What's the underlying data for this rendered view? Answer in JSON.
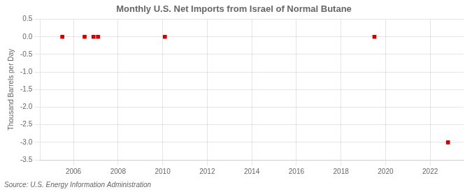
{
  "chart_data": {
    "type": "scatter",
    "title": "Monthly U.S. Net Imports from Israel of Normal Butane",
    "ylabel": "Thousand Barrels per Day",
    "annotations": [
      "Source: U.S. Energy Information Administration"
    ],
    "x": [
      2005.5,
      2006.5,
      2006.9,
      2007.1,
      2010.1,
      2019.5,
      2022.8
    ],
    "values": [
      0.0,
      0.0,
      0.0,
      0.0,
      0.0,
      0.0,
      -3.0
    ],
    "color": "#cc0000",
    "marker": "square",
    "xlim": [
      2004.5,
      2023.5
    ],
    "xticks": [
      2006,
      2008,
      2010,
      2012,
      2014,
      2016,
      2018,
      2020,
      2022
    ],
    "ylim": [
      -3.5,
      0.5
    ],
    "yticks": [
      0.5,
      {
        "value": 0,
        "label": "0.0"
      },
      -0.5,
      {
        "value": -1,
        "label": "-1.0"
      },
      -1.5,
      {
        "value": -2,
        "label": "-2.0"
      },
      -2.5,
      {
        "value": -3,
        "label": "-3.0"
      },
      -3.5
    ],
    "grid": true
  }
}
